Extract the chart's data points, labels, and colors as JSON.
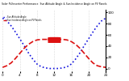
{
  "title": "Solar PV/Inverter Performance  Sun Altitude Angle & Sun Incidence Angle on PV Panels",
  "blue_y": [
    90,
    85,
    76,
    65,
    53,
    41,
    28,
    17,
    8,
    3,
    1,
    0,
    0,
    0,
    1,
    3,
    8,
    17,
    28,
    41,
    53,
    65,
    76,
    85,
    90
  ],
  "red_y": [
    2,
    5,
    10,
    18,
    27,
    36,
    43,
    48,
    51,
    52,
    52,
    52,
    52,
    52,
    52,
    51,
    48,
    43,
    36,
    27,
    18,
    10,
    5,
    3,
    2
  ],
  "blue_color": "#1111dd",
  "red_color": "#dd1111",
  "bg_color": "#ffffff",
  "grid_color": "#bbbbbb",
  "ylim": [
    -5,
    105
  ],
  "xlim": [
    0,
    24
  ],
  "xticks": [
    0,
    4,
    8,
    12,
    16,
    20,
    24
  ],
  "yticks_right": [
    0,
    20,
    40,
    60,
    80,
    100
  ],
  "legend_blue": "Sun Altitude Angle",
  "legend_red": "Sun Incidence Angle on PV Panels",
  "highlight_xmin": 10.5,
  "highlight_xmax": 13.5,
  "highlight_y": 52,
  "highlight_color": "#dd1111"
}
